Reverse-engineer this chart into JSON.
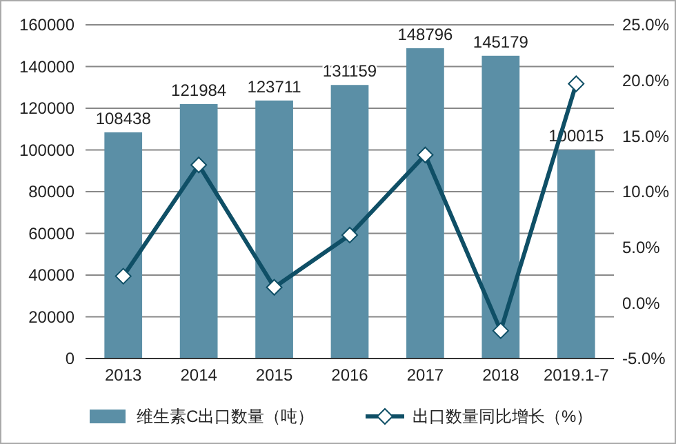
{
  "chart_data": {
    "type": "bar",
    "categories": [
      "2013",
      "2014",
      "2015",
      "2016",
      "2017",
      "2018",
      "2019.1-7"
    ],
    "series": [
      {
        "name": "维生素C出口数量（吨）",
        "color": "#5b8fa6",
        "values": [
          108438,
          121984,
          123711,
          131159,
          148796,
          145179,
          100015
        ],
        "value_labels": [
          "108438",
          "121984",
          "123711",
          "131159",
          "148796",
          "145179",
          "100015"
        ]
      },
      {
        "name": "出口数量同比增长（%）",
        "type": "line",
        "axis": "y2",
        "color": "#0f4f66",
        "marker": "diamond",
        "values": [
          2.4,
          12.4,
          1.4,
          6.1,
          13.3,
          -2.5,
          19.7
        ]
      }
    ],
    "ylim": [
      0,
      160000
    ],
    "yticks": [
      0,
      20000,
      40000,
      60000,
      80000,
      100000,
      120000,
      140000,
      160000
    ],
    "y2lim": [
      -5,
      25
    ],
    "y2ticks": [
      {
        "value": -5,
        "label": "-5.0%"
      },
      {
        "value": 0,
        "label": "0.0%"
      },
      {
        "value": 5,
        "label": "5.0%"
      },
      {
        "value": 10,
        "label": "10.0%"
      },
      {
        "value": 15,
        "label": "15.0%"
      },
      {
        "value": 20,
        "label": "20.0%"
      },
      {
        "value": 25,
        "label": "25.0%"
      }
    ],
    "grid": "y",
    "legend": "bottom"
  }
}
